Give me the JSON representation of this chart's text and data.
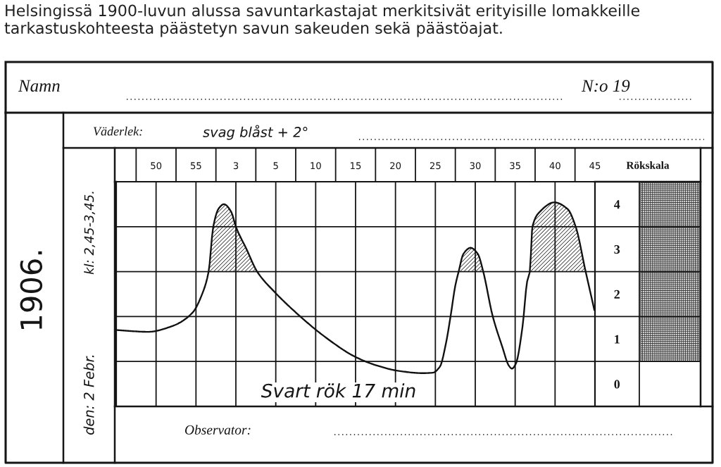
{
  "chart_data": {
    "type": "line",
    "title": "Helsingissä 1900-luvun alussa savuntarkastajat merkitsivät erityisille lomakkeille tarkastuskohteesta päästetyn savun sakeuden sekä päästöajat.",
    "ylabel": "Rökskala",
    "annotations": [
      "Namn",
      "N:o 19",
      "Väderlek:",
      "svag blåst + 2°",
      "1906.",
      "den: 2 Febr.",
      "kl: 2,45-3,45.",
      "Svart rök 17 min",
      "Observator:"
    ],
    "x": [
      "1906-02-02T02:45:00",
      "1906-02-02T02:49:00",
      "1906-02-02T02:51:55",
      "1906-02-02T02:54:35",
      "1906-02-02T02:55:45",
      "1906-02-02T02:56:35",
      "1906-02-02T02:57:10",
      "1906-02-02T02:57:50",
      "1906-02-02T02:58:30",
      "1906-02-02T02:59:25",
      "1906-02-02T03:00:00",
      "1906-02-02T03:01:20",
      "1906-02-02T03:02:40",
      "1906-02-02T03:04:50",
      "1906-02-02T03:08:05",
      "1906-02-02T03:11:00",
      "1906-02-02T03:15:00",
      "1906-02-02T03:17:30",
      "1906-02-02T03:20:25",
      "1906-02-02T03:23:25",
      "1906-02-02T03:24:40",
      "1906-02-02T03:25:35",
      "1906-02-02T03:26:20",
      "1906-02-02T03:26:55",
      "1906-02-02T03:27:30",
      "1906-02-02T03:27:55",
      "1906-02-02T03:28:30",
      "1906-02-02T03:29:25",
      "1906-02-02T03:30:20",
      "1906-02-02T03:31:00",
      "1906-02-02T03:32:10",
      "1906-02-02T03:33:25",
      "1906-02-02T03:34:10",
      "1906-02-02T03:34:35",
      "1906-02-02T03:35:05",
      "1906-02-02T03:35:55",
      "1906-02-02T03:36:30",
      "1906-02-02T03:36:50",
      "1906-02-02T03:37:10",
      "1906-02-02T03:38:05",
      "1906-02-02T03:39:55",
      "1906-02-02T03:41:35",
      "1906-02-02T03:42:35",
      "1906-02-02T03:43:50",
      "1906-02-02T03:44:55"
    ],
    "series": [
      {
        "color": "#111111",
        "values": [
          1.2,
          1.16,
          1.28,
          1.59,
          1.99,
          2.5,
          3.5,
          3.9,
          4.0,
          3.83,
          3.5,
          3.0,
          2.5,
          2.05,
          1.5,
          1.07,
          0.6,
          0.42,
          0.29,
          0.24,
          0.25,
          0.39,
          0.91,
          1.52,
          2.19,
          2.5,
          2.89,
          3.03,
          2.89,
          2.5,
          1.52,
          0.81,
          0.42,
          0.34,
          0.45,
          1.27,
          2.28,
          2.5,
          3.5,
          3.83,
          4.04,
          3.89,
          3.5,
          2.5,
          1.65
        ],
        "lower": [
          null,
          null,
          null,
          null,
          null,
          2.5,
          2.5,
          2.5,
          2.5,
          2.5,
          2.5,
          2.5,
          2.5,
          null,
          null,
          null,
          null,
          null,
          null,
          null,
          null,
          null,
          null,
          null,
          null,
          2.5,
          2.5,
          2.5,
          2.5,
          2.5,
          null,
          null,
          null,
          null,
          null,
          null,
          null,
          2.5,
          2.5,
          2.5,
          2.5,
          2.5,
          2.5,
          2.5,
          null
        ],
        "upper": [
          null,
          null,
          null,
          null,
          null,
          2.5,
          3.5,
          3.9,
          4.0,
          3.83,
          3.5,
          3.0,
          2.5,
          null,
          null,
          null,
          null,
          null,
          null,
          null,
          null,
          null,
          null,
          null,
          null,
          2.5,
          2.89,
          3.03,
          2.89,
          2.5,
          null,
          null,
          null,
          null,
          null,
          null,
          null,
          2.5,
          3.5,
          3.83,
          4.04,
          3.89,
          3.5,
          2.5,
          null
        ]
      }
    ],
    "xlim": [
      "1906-02-02T02:45",
      "1906-02-02T03:45"
    ],
    "xticks": [
      {
        "value": "1906-02-02T02:45",
        "label": null
      },
      {
        "value": "1906-02-02T02:50",
        "label": "50"
      },
      {
        "value": "1906-02-02T02:55",
        "label": "55"
      },
      {
        "value": "1906-02-02T03:00",
        "label": "3"
      },
      {
        "value": "1906-02-02T03:05",
        "label": "5"
      },
      {
        "value": "1906-02-02T03:10",
        "label": "10"
      },
      {
        "value": "1906-02-02T03:15",
        "label": "15"
      },
      {
        "value": "1906-02-02T03:20",
        "label": "20"
      },
      {
        "value": "1906-02-02T03:25",
        "label": "25"
      },
      {
        "value": "1906-02-02T03:30",
        "label": "30"
      },
      {
        "value": "1906-02-02T03:35",
        "label": "35"
      },
      {
        "value": "1906-02-02T03:40",
        "label": "40"
      },
      {
        "value": "1906-02-02T03:45",
        "label": "45"
      }
    ],
    "ylim": [
      -0.5,
      4.5
    ],
    "yticks": [
      {
        "value": -0.5,
        "label": null
      },
      0,
      {
        "value": 0.5,
        "label": null
      },
      1,
      {
        "value": 1.5,
        "label": null
      },
      2,
      {
        "value": 2.5,
        "label": null
      },
      3,
      {
        "value": 3.5,
        "label": null
      },
      4,
      {
        "value": 4.5,
        "label": null
      }
    ],
    "grid": true
  }
}
